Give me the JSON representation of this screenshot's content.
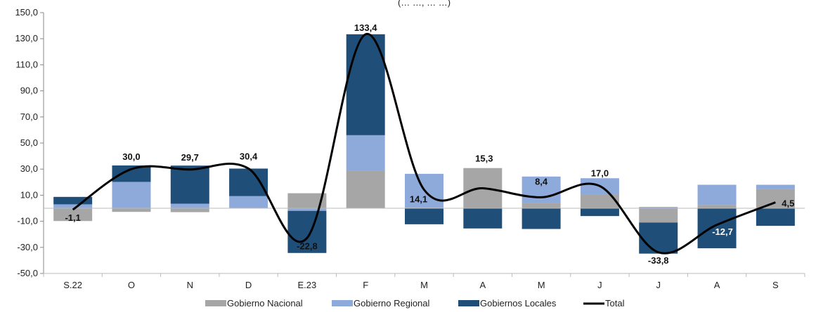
{
  "chart_data": {
    "type": "bar",
    "subtitle": "(… …, … …)",
    "categories": [
      "S.22",
      "O",
      "N",
      "D",
      "E.23",
      "F",
      "M",
      "A",
      "M",
      "J",
      "J",
      "A",
      "S"
    ],
    "ylim": [
      -50,
      150
    ],
    "yticks": [
      "150,0",
      "130,0",
      "110,0",
      "90,0",
      "70,0",
      "50,0",
      "30,0",
      "10,0",
      "-10,0",
      "-30,0",
      "-50,0"
    ],
    "ytick_values": [
      150,
      130,
      110,
      90,
      70,
      50,
      30,
      10,
      -10,
      -30,
      -50
    ],
    "grid": false,
    "stacked": true,
    "legend_position": "bottom",
    "series": [
      {
        "name": "Gobierno Nacional",
        "color": "#a6a6a6",
        "values": [
          -9.8,
          -2.8,
          -3.0,
          0.3,
          11.5,
          29.0,
          0.4,
          30.8,
          3.8,
          10.5,
          -11.0,
          2.5,
          15.0
        ]
      },
      {
        "name": "Gobierno Regional",
        "color": "#8eaadb",
        "values": [
          3.0,
          20.2,
          3.5,
          9.0,
          -2.0,
          27.0,
          26.0,
          0,
          20.5,
          12.5,
          1.0,
          15.5,
          3.0
        ]
      },
      {
        "name": "Gobiernos Locales",
        "color": "#1f4e79",
        "values": [
          5.7,
          12.6,
          29.2,
          21.1,
          -32.3,
          77.4,
          -12.3,
          -15.5,
          -15.9,
          -6.0,
          -23.8,
          -30.7,
          -13.5
        ]
      }
    ],
    "total": {
      "name": "Total",
      "color": "#000000",
      "values": [
        -1.1,
        30.0,
        29.7,
        30.4,
        -22.8,
        133.4,
        14.1,
        15.3,
        8.4,
        17.0,
        -33.8,
        -12.7,
        4.5
      ]
    },
    "data_labels": [
      "-1,1",
      "30,0",
      "29,7",
      "30,4",
      "-22,8",
      "133,4",
      "14,1",
      "15,3",
      "8,4",
      "17,0",
      "-33,8",
      "-12,7",
      "4,5"
    ]
  }
}
